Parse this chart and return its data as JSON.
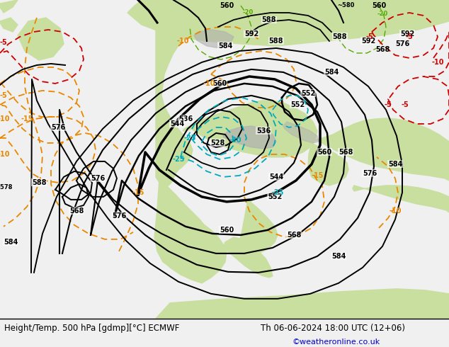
{
  "title_left": "Height/Temp. 500 hPa [gdmp][°C] ECMWF",
  "title_right": "Th 06-06-2024 18:00 UTC (12+06)",
  "credit": "©weatheronline.co.uk",
  "bg_color": "#c8c8c8",
  "land_color": "#c8dfa0",
  "mountain_color": "#b0b0b0",
  "figsize": [
    6.34,
    4.9
  ],
  "dpi": 100
}
